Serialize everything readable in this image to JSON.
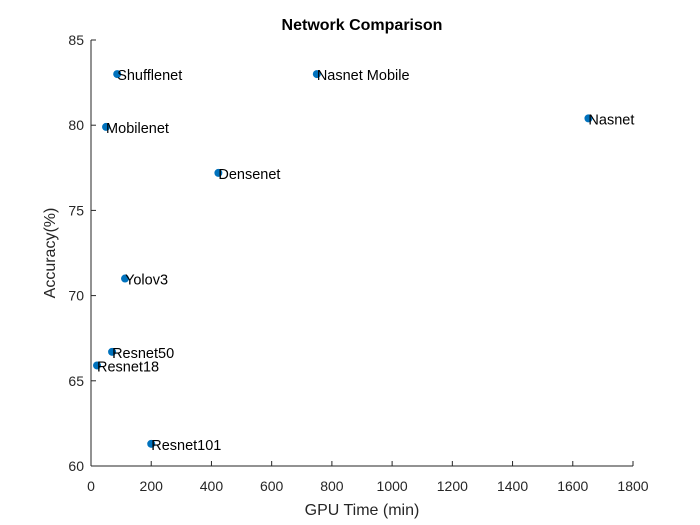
{
  "chart_data": {
    "type": "scatter",
    "title": "Network Comparison",
    "xlabel": "GPU Time (min)",
    "ylabel": "Accuracy(%)",
    "xlim": [
      0,
      1800
    ],
    "ylim": [
      60,
      85
    ],
    "xticks": [
      0,
      200,
      400,
      600,
      800,
      1000,
      1200,
      1400,
      1600,
      1800
    ],
    "yticks": [
      60,
      65,
      70,
      75,
      80,
      85
    ],
    "grid": false,
    "marker_color": "#0072BD",
    "points": [
      {
        "label": "Shufflenet",
        "x": 87,
        "y": 83.0
      },
      {
        "label": "Nasnet Mobile",
        "x": 750,
        "y": 83.0
      },
      {
        "label": "Nasnet",
        "x": 1652,
        "y": 80.4
      },
      {
        "label": "Mobilenet",
        "x": 50,
        "y": 79.9
      },
      {
        "label": "Densenet",
        "x": 423,
        "y": 77.2
      },
      {
        "label": "Yolov3",
        "x": 113,
        "y": 71.0
      },
      {
        "label": "Resnet50",
        "x": 70,
        "y": 66.7
      },
      {
        "label": "Resnet18",
        "x": 20,
        "y": 65.9
      },
      {
        "label": "Resnet101",
        "x": 200,
        "y": 61.3
      }
    ]
  }
}
